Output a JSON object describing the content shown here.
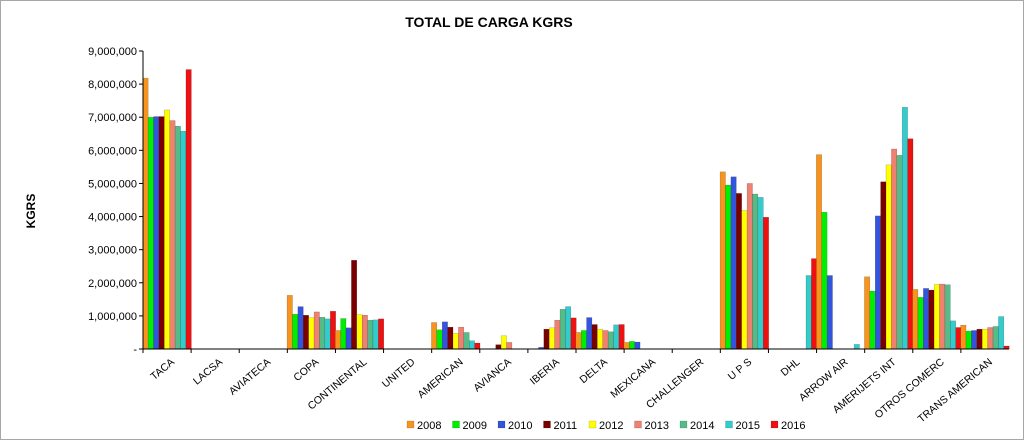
{
  "chart_data": {
    "type": "bar",
    "title": "TOTAL DE CARGA  KGRS",
    "ylabel": "KGRS",
    "xlabel": "",
    "ylim": [
      0,
      9000000
    ],
    "y_ticks": [
      0,
      1000000,
      2000000,
      3000000,
      4000000,
      5000000,
      6000000,
      7000000,
      8000000,
      9000000
    ],
    "y_tick_labels": [
      "-",
      "1,000,000",
      "2,000,000",
      "3,000,000",
      "4,000,000",
      "5,000,000",
      "6,000,000",
      "7,000,000",
      "8,000,000",
      "9,000,000"
    ],
    "grid": false,
    "legend_position": "bottom",
    "categories": [
      "TACA",
      "LACSA",
      "AVIATECA",
      "COPA",
      "CONTINENTAL",
      "UNITED",
      "AMERICAN",
      "AVIANCA",
      "IBERIA",
      "DELTA",
      "MEXICANA",
      "CHALLENGER",
      "U  P  S",
      "DHL",
      "ARROW  AIR",
      "AMERIJETS INT",
      "OTROS COMERC",
      "TRANS  AMERICAN"
    ],
    "series": [
      {
        "name": "2008",
        "color": "#F7941D",
        "values": [
          8180000,
          0,
          0,
          1620000,
          560000,
          0,
          800000,
          0,
          0,
          500000,
          200000,
          0,
          5350000,
          0,
          5870000,
          2180000,
          1800000,
          720000
        ]
      },
      {
        "name": "2009",
        "color": "#00EE00",
        "values": [
          7000000,
          0,
          0,
          1050000,
          920000,
          0,
          580000,
          0,
          0,
          560000,
          230000,
          0,
          4950000,
          0,
          4130000,
          1750000,
          1560000,
          540000
        ]
      },
      {
        "name": "2010",
        "color": "#3355DD",
        "values": [
          7020000,
          0,
          0,
          1280000,
          640000,
          0,
          820000,
          0,
          50000,
          950000,
          210000,
          0,
          5200000,
          0,
          2220000,
          4020000,
          1830000,
          560000
        ]
      },
      {
        "name": "2011",
        "color": "#7A0000",
        "values": [
          7020000,
          0,
          0,
          1020000,
          2680000,
          0,
          660000,
          130000,
          600000,
          740000,
          0,
          0,
          4700000,
          0,
          0,
          5050000,
          1780000,
          600000
        ]
      },
      {
        "name": "2012",
        "color": "#FFFF00",
        "values": [
          7220000,
          0,
          0,
          950000,
          1040000,
          0,
          470000,
          400000,
          640000,
          600000,
          0,
          0,
          4180000,
          0,
          0,
          5560000,
          1950000,
          600000
        ]
      },
      {
        "name": "2013",
        "color": "#F08070",
        "values": [
          6900000,
          0,
          0,
          1120000,
          1020000,
          0,
          660000,
          200000,
          870000,
          560000,
          0,
          0,
          5000000,
          0,
          0,
          6040000,
          1960000,
          650000
        ]
      },
      {
        "name": "2014",
        "color": "#55BB88",
        "values": [
          6730000,
          0,
          0,
          960000,
          870000,
          0,
          500000,
          0,
          1200000,
          520000,
          0,
          0,
          4680000,
          0,
          0,
          5850000,
          1940000,
          680000
        ]
      },
      {
        "name": "2015",
        "color": "#33CCCC",
        "values": [
          6580000,
          0,
          0,
          910000,
          880000,
          0,
          250000,
          0,
          1280000,
          730000,
          0,
          0,
          4580000,
          2220000,
          140000,
          7300000,
          850000,
          980000
        ]
      },
      {
        "name": "2016",
        "color": "#EE1111",
        "values": [
          8440000,
          0,
          0,
          1140000,
          910000,
          0,
          180000,
          0,
          940000,
          740000,
          0,
          0,
          3980000,
          2730000,
          0,
          6350000,
          650000,
          90000
        ]
      }
    ]
  }
}
